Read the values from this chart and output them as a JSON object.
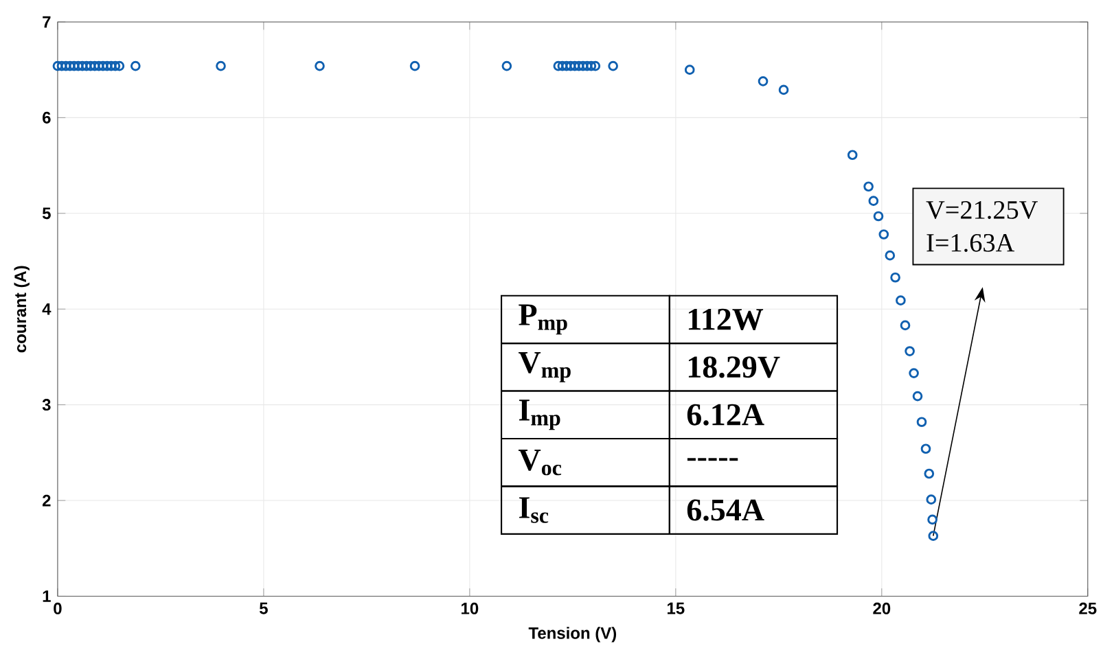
{
  "chart_data": {
    "type": "scatter",
    "xlabel": "Tension (V)",
    "ylabel": "courant (A)",
    "x": [
      0,
      0.1,
      0.2,
      0.3,
      0.4,
      0.5,
      0.6,
      0.7,
      0.8,
      0.9,
      1.0,
      1.1,
      1.2,
      1.3,
      1.4,
      1.5,
      1.89,
      3.96,
      6.36,
      8.67,
      10.9,
      12.15,
      12.25,
      12.35,
      12.45,
      12.55,
      12.65,
      12.75,
      12.85,
      12.95,
      13.05,
      13.48,
      15.34,
      17.12,
      17.62,
      19.29,
      19.68,
      19.8,
      19.92,
      20.05,
      20.2,
      20.33,
      20.46,
      20.57,
      20.68,
      20.78,
      20.87,
      20.97,
      21.07,
      21.15,
      21.2,
      21.23,
      21.25
    ],
    "series": [
      {
        "color": "#1060b0",
        "values": [
          6.54,
          6.54,
          6.54,
          6.54,
          6.54,
          6.54,
          6.54,
          6.54,
          6.54,
          6.54,
          6.54,
          6.54,
          6.54,
          6.54,
          6.54,
          6.54,
          6.54,
          6.54,
          6.54,
          6.54,
          6.54,
          6.54,
          6.54,
          6.54,
          6.54,
          6.54,
          6.54,
          6.54,
          6.54,
          6.54,
          6.54,
          6.54,
          6.5,
          6.38,
          6.29,
          5.61,
          5.28,
          5.13,
          4.97,
          4.78,
          4.56,
          4.33,
          4.09,
          3.83,
          3.56,
          3.33,
          3.09,
          2.82,
          2.54,
          2.28,
          2.01,
          1.8,
          1.63
        ]
      }
    ],
    "xlim": [
      0,
      25
    ],
    "ylim": [
      1,
      7
    ],
    "xticks": [
      0,
      5,
      10,
      15,
      20,
      25
    ],
    "yticks": [
      1,
      2,
      3,
      4,
      5,
      6,
      7
    ],
    "grid": true,
    "marker": "circle",
    "annotations": [
      "V=21.25V I=1.63A",
      "P$_{mp}$",
      "112W",
      "V$_{mp}$",
      "18.29V",
      "I$_{mp}$",
      "6.12A",
      "V$_{oc}$",
      "-----",
      "I$_{sc}$",
      "6.54A"
    ]
  }
}
